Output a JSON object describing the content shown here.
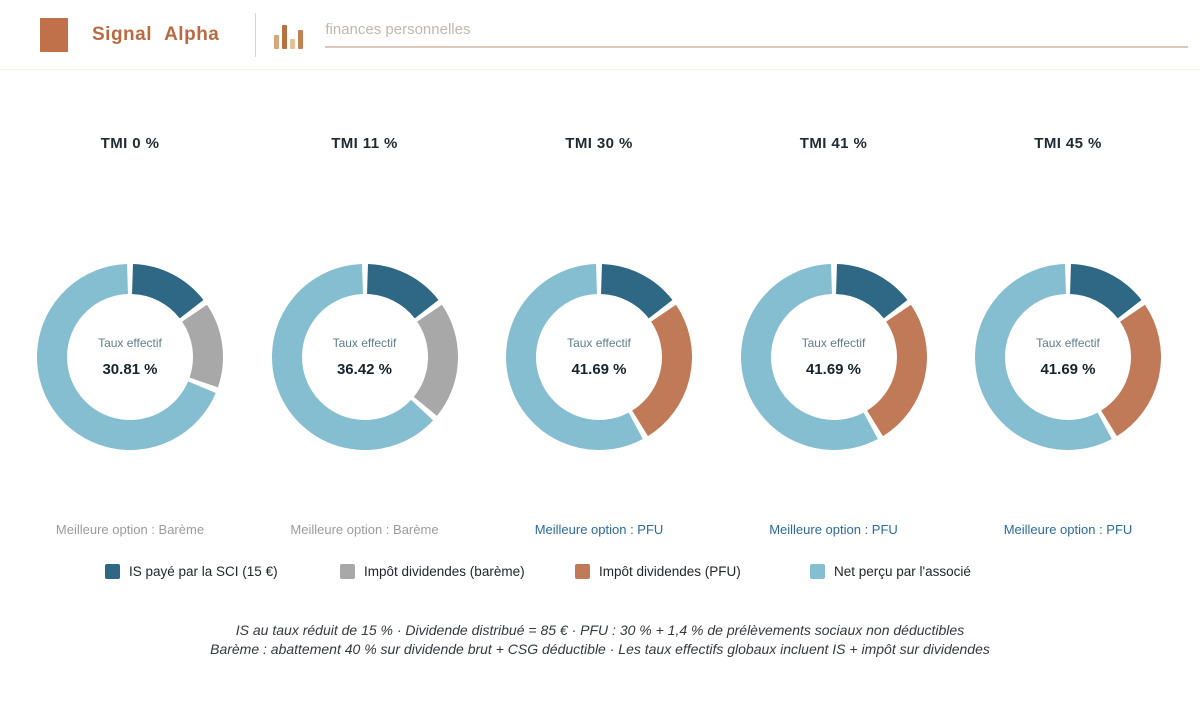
{
  "header": {
    "brand": "Signal Alpha",
    "subtitle": "finances personnelles"
  },
  "colors": {
    "is": "#2e6884",
    "bareme": "#a8a8a8",
    "pfu": "#c07a57",
    "net": "#85bdd1",
    "accent": "#c0714a",
    "option_pfu": "#2b6a9e",
    "option_bareme": "#9b9b9b",
    "icon_bar_colors": [
      "#d5a87c",
      "#b5713f",
      "#e3c096",
      "#c28253"
    ]
  },
  "chart_data": {
    "type": "pie",
    "center_label": "Taux effectif",
    "legend_position": "bottom",
    "charts": [
      {
        "title": "TMI 0 %",
        "effective_rate": "30.81 %",
        "best_option": "Meilleure option : Barème",
        "best_is_pfu": false,
        "segments": [
          {
            "name": "is",
            "value": 15.0
          },
          {
            "name": "bareme",
            "value": 15.81
          },
          {
            "name": "net",
            "value": 69.19
          }
        ]
      },
      {
        "title": "TMI 11 %",
        "effective_rate": "36.42 %",
        "best_option": "Meilleure option : Barème",
        "best_is_pfu": false,
        "segments": [
          {
            "name": "is",
            "value": 15.0
          },
          {
            "name": "bareme",
            "value": 21.42
          },
          {
            "name": "net",
            "value": 63.58
          }
        ]
      },
      {
        "title": "TMI 30 %",
        "effective_rate": "41.69 %",
        "best_option": "Meilleure option : PFU",
        "best_is_pfu": true,
        "segments": [
          {
            "name": "is",
            "value": 15.0
          },
          {
            "name": "pfu",
            "value": 26.69
          },
          {
            "name": "net",
            "value": 58.31
          }
        ]
      },
      {
        "title": "TMI 41 %",
        "effective_rate": "41.69 %",
        "best_option": "Meilleure option : PFU",
        "best_is_pfu": true,
        "segments": [
          {
            "name": "is",
            "value": 15.0
          },
          {
            "name": "pfu",
            "value": 26.69
          },
          {
            "name": "net",
            "value": 58.31
          }
        ]
      },
      {
        "title": "TMI 45 %",
        "effective_rate": "41.69 %",
        "best_option": "Meilleure option : PFU",
        "best_is_pfu": true,
        "segments": [
          {
            "name": "is",
            "value": 15.0
          },
          {
            "name": "pfu",
            "value": 26.69
          },
          {
            "name": "net",
            "value": 58.31
          }
        ]
      }
    ]
  },
  "legend": [
    {
      "color_key": "is",
      "label": "IS payé par la SCI (15 €)"
    },
    {
      "color_key": "bareme",
      "label": "Impôt dividendes (barème)"
    },
    {
      "color_key": "pfu",
      "label": "Impôt dividendes (PFU)"
    },
    {
      "color_key": "net",
      "label": "Net perçu par l'associé"
    }
  ],
  "footnote": {
    "line1": "IS au taux réduit de 15 % · Dividende distribué = 85 € · PFU : 30 % + 1,4 % de prélèvements sociaux non déductibles",
    "line2": "Barème : abattement 40 % sur dividende brut + CSG déductible · Les taux effectifs globaux incluent IS + impôt sur dividendes"
  }
}
